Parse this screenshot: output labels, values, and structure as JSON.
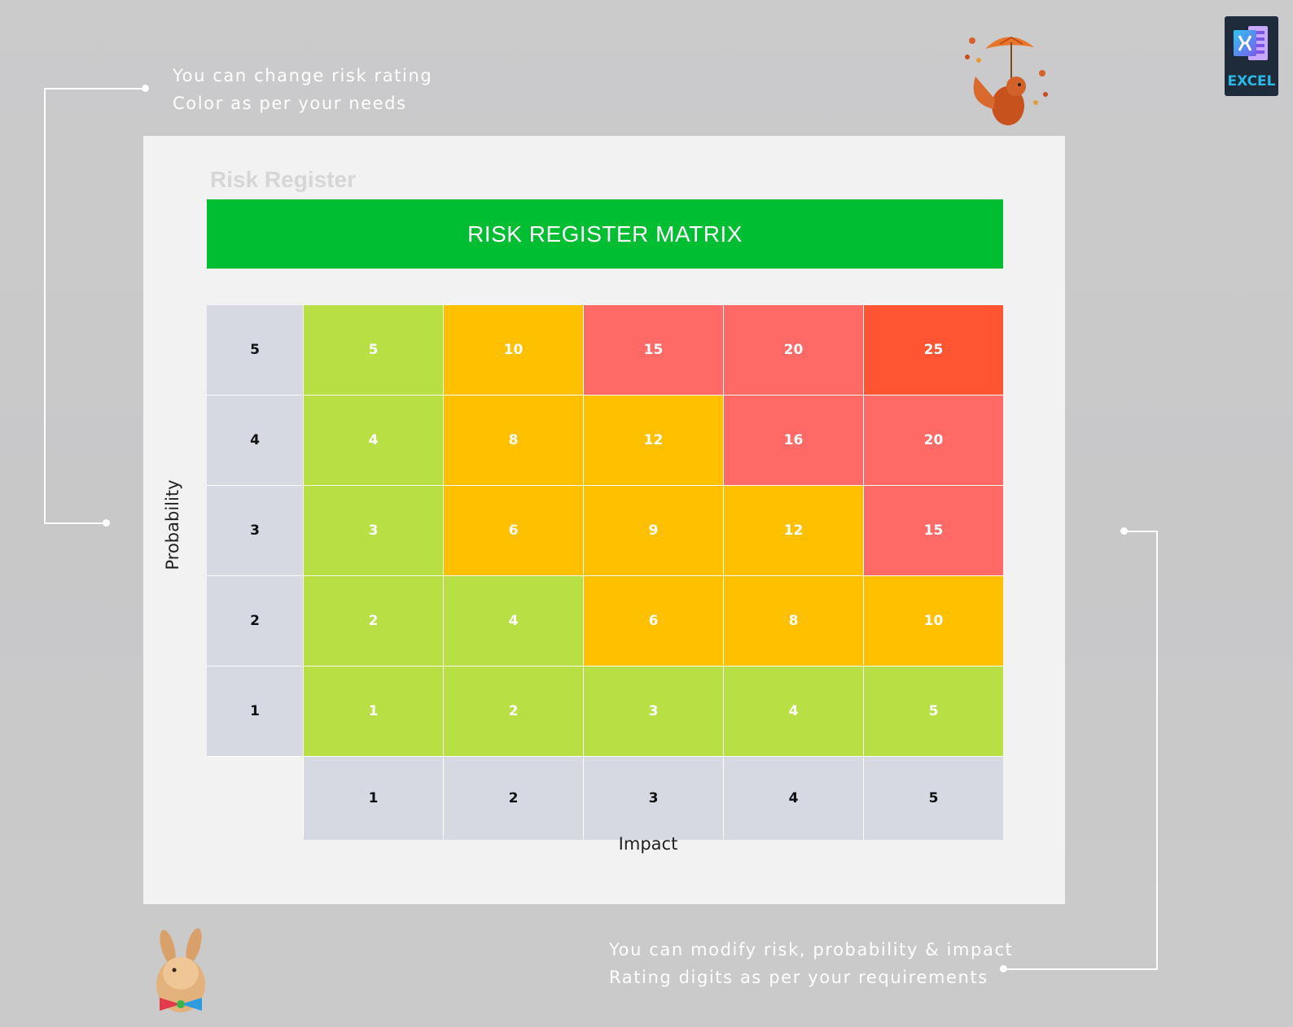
{
  "callouts": {
    "top_left": [
      "You can change risk rating",
      "Color as per your needs"
    ],
    "bottom_right": [
      "You can modify risk, probability & impact",
      "Rating digits as per your requirements"
    ]
  },
  "badge": {
    "label": "EXCEL",
    "icon": "excel-icon"
  },
  "sheet": {
    "title": "Risk Register",
    "banner": "RISK REGISTER MATRIX",
    "y_axis_label": "Probability",
    "x_axis_label": "Impact"
  },
  "matrix": {
    "probability_levels": [
      "5",
      "4",
      "3",
      "2",
      "1"
    ],
    "impact_levels": [
      "1",
      "2",
      "3",
      "4",
      "5"
    ],
    "rows": [
      [
        "5",
        "10",
        "15",
        "20",
        "25"
      ],
      [
        "4",
        "8",
        "12",
        "16",
        "20"
      ],
      [
        "3",
        "6",
        "9",
        "12",
        "15"
      ],
      [
        "2",
        "4",
        "6",
        "8",
        "10"
      ],
      [
        "1",
        "2",
        "3",
        "4",
        "5"
      ]
    ],
    "colors": {
      "low": "#b8e045",
      "medium": "#ffc000",
      "high": "#ff6a66",
      "critical": "#ff5533",
      "axis": "#d6d8e2"
    },
    "row_color_keys": [
      [
        "low",
        "medium",
        "high",
        "high",
        "critical"
      ],
      [
        "low",
        "medium",
        "medium",
        "high",
        "high"
      ],
      [
        "low",
        "medium",
        "medium",
        "medium",
        "high"
      ],
      [
        "low",
        "low",
        "medium",
        "medium",
        "medium"
      ],
      [
        "low",
        "low",
        "low",
        "low",
        "low"
      ]
    ]
  },
  "decorations": [
    "squirrel-umbrella-illustration",
    "rabbit-bowtie-illustration"
  ]
}
